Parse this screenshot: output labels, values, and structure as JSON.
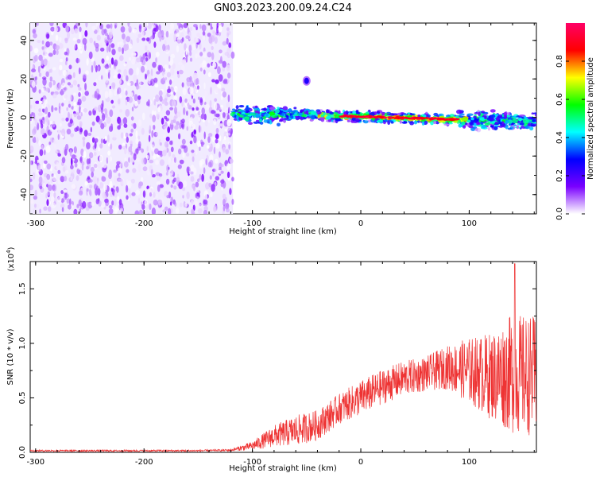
{
  "title": "GN03.2023.200.09.24.C24",
  "chart_data": [
    {
      "type": "heatmap",
      "xlabel": "Height of straight line (km)",
      "ylabel": "Frequency (Hz)",
      "xlim": [
        -305,
        162
      ],
      "ylim": [
        -50,
        49
      ],
      "xticks": [
        -300,
        -200,
        -100,
        0,
        100
      ],
      "yticks": [
        -40,
        -20,
        0,
        20,
        40
      ],
      "colorbar": {
        "label": "Normalized spectral amplitude",
        "range": [
          0,
          1
        ],
        "ticks": [
          "0.0",
          "0.2",
          "0.4",
          "0.6",
          "0.8"
        ],
        "tick_values": [
          0.0,
          0.2,
          0.4,
          0.6,
          0.8
        ],
        "colormap": [
          "#ffffff",
          "#7a00ff",
          "#0000ff",
          "#00ffff",
          "#00ff00",
          "#ffff00",
          "#ff0000",
          "#ff0066"
        ]
      },
      "noise_region": {
        "x": [
          -305,
          -118
        ],
        "y": [
          -50,
          49
        ]
      },
      "signal_band": [
        {
          "x": -118,
          "y": 1.5
        },
        {
          "x": -90,
          "y": 1.5
        },
        {
          "x": -60,
          "y": 1.5
        },
        {
          "x": -30,
          "y": 1
        },
        {
          "x": 0,
          "y": 0.5
        },
        {
          "x": 30,
          "y": 0
        },
        {
          "x": 60,
          "y": -0.5
        },
        {
          "x": 90,
          "y": -1
        },
        {
          "x": 120,
          "y": -1.5
        },
        {
          "x": 162,
          "y": -2
        }
      ],
      "blob": {
        "x": -50,
        "y": 19
      }
    },
    {
      "type": "line",
      "xlabel": "Height of straight line (km)",
      "ylabel": "SNR (10 * v/v)",
      "yscale_note": "(x10",
      "yscale_exp": "4",
      "yscale_close": ")",
      "xlim": [
        -305,
        162
      ],
      "ylim": [
        0,
        1.75
      ],
      "xticks": [
        -300,
        -200,
        -100,
        0,
        100
      ],
      "yticks": [
        "0.0",
        "0.5",
        "1.0",
        "1.5"
      ],
      "ytick_values": [
        0.0,
        0.5,
        1.0,
        1.5
      ],
      "color": "#ee3333",
      "envelope": [
        {
          "x": -305,
          "mean": 0.015,
          "amp": 0.008
        },
        {
          "x": -150,
          "mean": 0.015,
          "amp": 0.008
        },
        {
          "x": -120,
          "mean": 0.02,
          "amp": 0.01
        },
        {
          "x": -100,
          "mean": 0.06,
          "amp": 0.04
        },
        {
          "x": -80,
          "mean": 0.15,
          "amp": 0.1
        },
        {
          "x": -60,
          "mean": 0.2,
          "amp": 0.14
        },
        {
          "x": -40,
          "mean": 0.25,
          "amp": 0.14
        },
        {
          "x": -20,
          "mean": 0.4,
          "amp": 0.14
        },
        {
          "x": 0,
          "mean": 0.5,
          "amp": 0.16
        },
        {
          "x": 20,
          "mean": 0.6,
          "amp": 0.16
        },
        {
          "x": 40,
          "mean": 0.68,
          "amp": 0.16
        },
        {
          "x": 60,
          "mean": 0.72,
          "amp": 0.16
        },
        {
          "x": 80,
          "mean": 0.78,
          "amp": 0.2
        },
        {
          "x": 100,
          "mean": 0.75,
          "amp": 0.3
        },
        {
          "x": 120,
          "mean": 0.7,
          "amp": 0.4
        },
        {
          "x": 140,
          "mean": 0.72,
          "amp": 0.55
        },
        {
          "x": 162,
          "mean": 0.7,
          "amp": 0.55
        }
      ],
      "peak": {
        "x": 142,
        "y": 1.73
      }
    }
  ]
}
